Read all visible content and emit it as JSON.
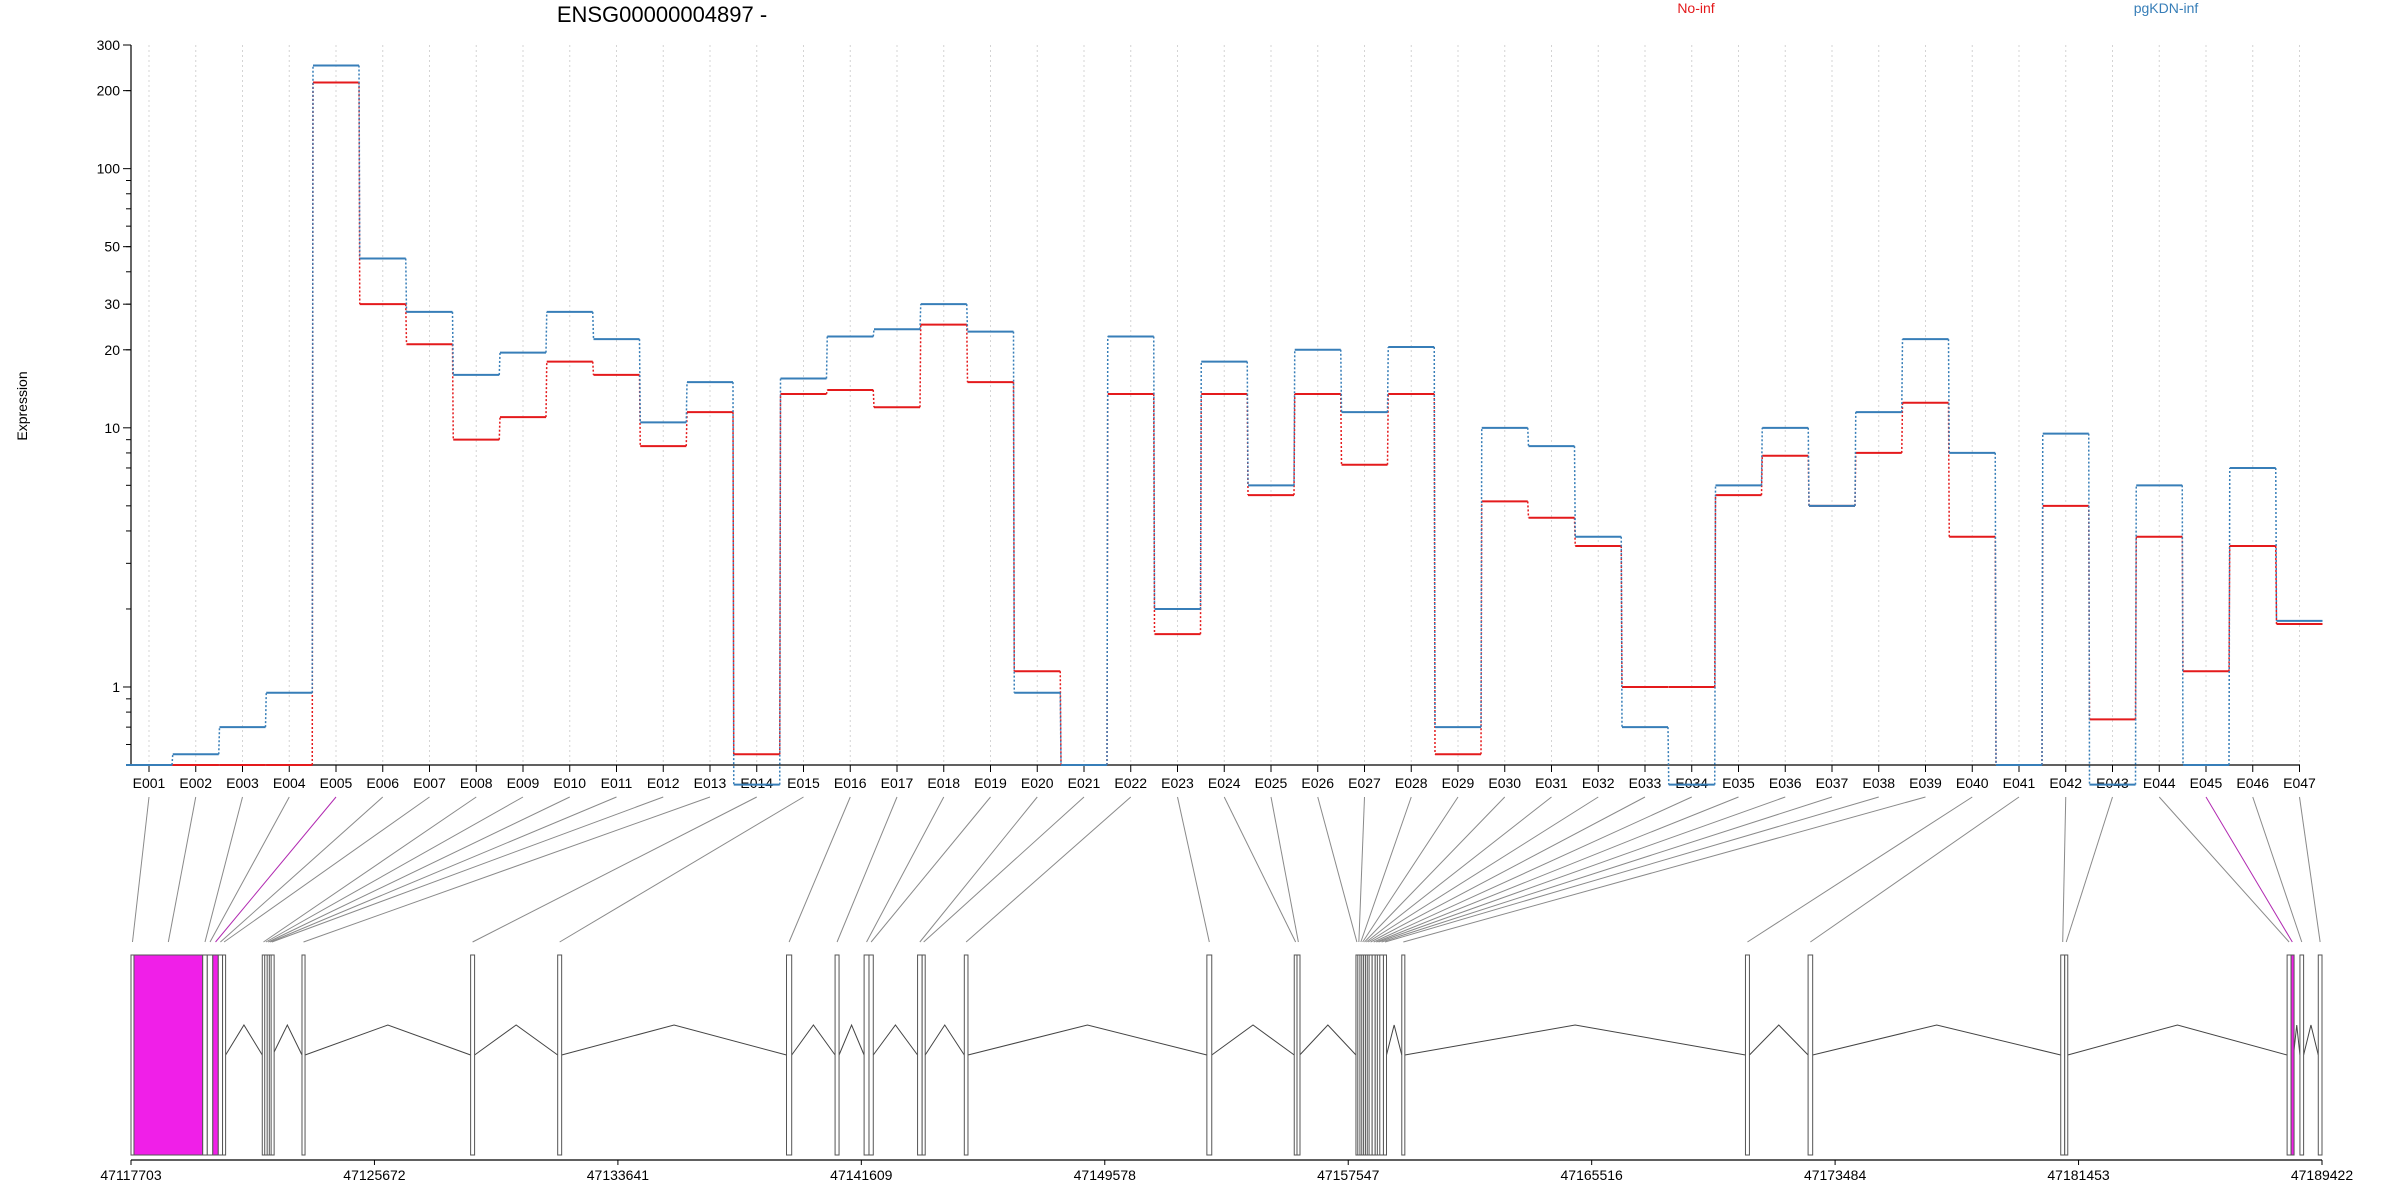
{
  "title": "ENSG00000004897 -",
  "legend": [
    {
      "name": "No-inf",
      "color": "#e41a1c"
    },
    {
      "name": "pgKDN-inf",
      "color": "#377eb8"
    }
  ],
  "chart_data": {
    "type": "line",
    "title": "ENSG00000004897 -",
    "ylabel": "Expression",
    "xlabel": "",
    "yscale": "log",
    "ylim": [
      0.5,
      300
    ],
    "yticks": [
      "1",
      "10",
      "20",
      "30",
      "50",
      "100",
      "200",
      "300"
    ],
    "grid": "vertical dotted",
    "legend_position": "top",
    "categories": [
      "E001",
      "E002",
      "E003",
      "E004",
      "E005",
      "E006",
      "E007",
      "E008",
      "E009",
      "E010",
      "E011",
      "E012",
      "E013",
      "E014",
      "E015",
      "E016",
      "E017",
      "E018",
      "E019",
      "E020",
      "E021",
      "E022",
      "E023",
      "E024",
      "E025",
      "E026",
      "E027",
      "E028",
      "E029",
      "E030",
      "E031",
      "E032",
      "E033",
      "E034",
      "E035",
      "E036",
      "E037",
      "E038",
      "E039",
      "E040",
      "E041",
      "E042",
      "E043",
      "E044",
      "E045",
      "E046",
      "E047"
    ],
    "series": [
      {
        "name": "No-inf",
        "color": "#e41a1c",
        "values": [
          0.5,
          0.5,
          0.5,
          0.5,
          215,
          30,
          21,
          9,
          11,
          18,
          16,
          8.5,
          11.5,
          0.55,
          13.5,
          14,
          12,
          25,
          15,
          1.15,
          0.5,
          13.5,
          1.6,
          13.5,
          5.5,
          13.5,
          7.2,
          13.5,
          0.55,
          5.2,
          4.5,
          3.5,
          1,
          1,
          5.5,
          7.8,
          5,
          8,
          12.5,
          3.8,
          0.5,
          5,
          0.75,
          3.8,
          1.15,
          3.5,
          1.75
        ]
      },
      {
        "name": "pgKDN-inf",
        "color": "#377eb8",
        "values": [
          0.5,
          0.55,
          0.7,
          0.95,
          250,
          45,
          28,
          16,
          19.5,
          28,
          22,
          10.5,
          15,
          0.42,
          15.5,
          22.5,
          24,
          30,
          23.5,
          0.95,
          0.5,
          22.5,
          2,
          18,
          6,
          20,
          11.5,
          20.5,
          0.7,
          10,
          8.5,
          3.8,
          0.7,
          0.42,
          6,
          10,
          5,
          11.5,
          22,
          8,
          0.5,
          9.5,
          0.42,
          6,
          0.5,
          7,
          1.8
        ]
      }
    ]
  },
  "gene_model": {
    "start": 47117703,
    "end": 47189422,
    "axis_ticks": [
      "47117703",
      "47125672",
      "47133641",
      "47141609",
      "47149578",
      "47157547",
      "47165516",
      "47173484",
      "47181453",
      "47189422"
    ],
    "exons": [
      {
        "id": "E001",
        "start": 47117703,
        "end": 47117800,
        "color": "#ffffff"
      },
      {
        "id": "E002",
        "start": 47117800,
        "end": 47120050,
        "color": "#f01fe8"
      },
      {
        "id": "E003",
        "start": 47120050,
        "end": 47120200,
        "color": "#ffffff"
      },
      {
        "id": "E004",
        "start": 47120200,
        "end": 47120380,
        "color": "#ffffff"
      },
      {
        "id": "E005",
        "start": 47120380,
        "end": 47120560,
        "color": "#f01fe8"
      },
      {
        "id": "E006",
        "start": 47120560,
        "end": 47120700,
        "color": "#ffffff"
      },
      {
        "id": "E007",
        "start": 47120700,
        "end": 47120800,
        "color": "#ffffff"
      },
      {
        "id": "E008",
        "start": 47122000,
        "end": 47122080,
        "color": "#ffffff"
      },
      {
        "id": "E009",
        "start": 47122080,
        "end": 47122160,
        "color": "#ffffff"
      },
      {
        "id": "E010",
        "start": 47122160,
        "end": 47122230,
        "color": "#ffffff"
      },
      {
        "id": "E011",
        "start": 47122230,
        "end": 47122290,
        "color": "#ffffff"
      },
      {
        "id": "E012",
        "start": 47122290,
        "end": 47122340,
        "color": "#ffffff"
      },
      {
        "id": "E013",
        "start": 47123300,
        "end": 47123400,
        "color": "#ffffff"
      },
      {
        "id": "E014",
        "start": 47128820,
        "end": 47128950,
        "color": "#ffffff"
      },
      {
        "id": "E015",
        "start": 47131670,
        "end": 47131800,
        "color": "#ffffff"
      },
      {
        "id": "E016",
        "start": 47139160,
        "end": 47139330,
        "color": "#ffffff"
      },
      {
        "id": "E017",
        "start": 47140750,
        "end": 47140880,
        "color": "#ffffff"
      },
      {
        "id": "E018",
        "start": 47141700,
        "end": 47141860,
        "color": "#ffffff"
      },
      {
        "id": "E019",
        "start": 47141860,
        "end": 47142000,
        "color": "#ffffff"
      },
      {
        "id": "E020",
        "start": 47143450,
        "end": 47143600,
        "color": "#ffffff"
      },
      {
        "id": "E021",
        "start": 47143600,
        "end": 47143700,
        "color": "#ffffff"
      },
      {
        "id": "E022",
        "start": 47144980,
        "end": 47145100,
        "color": "#ffffff"
      },
      {
        "id": "E023",
        "start": 47152920,
        "end": 47153080,
        "color": "#ffffff"
      },
      {
        "id": "E024",
        "start": 47155780,
        "end": 47155870,
        "color": "#ffffff"
      },
      {
        "id": "E025",
        "start": 47155870,
        "end": 47155960,
        "color": "#ffffff"
      },
      {
        "id": "E026",
        "start": 47157800,
        "end": 47157860,
        "color": "#ffffff"
      },
      {
        "id": "E027",
        "start": 47157860,
        "end": 47157930,
        "color": "#ffffff"
      },
      {
        "id": "E028",
        "start": 47157930,
        "end": 47157990,
        "color": "#ffffff"
      },
      {
        "id": "E029",
        "start": 47157990,
        "end": 47158050,
        "color": "#ffffff"
      },
      {
        "id": "E030",
        "start": 47158050,
        "end": 47158110,
        "color": "#ffffff"
      },
      {
        "id": "E031",
        "start": 47158110,
        "end": 47158170,
        "color": "#ffffff"
      },
      {
        "id": "E032",
        "start": 47158170,
        "end": 47158230,
        "color": "#ffffff"
      },
      {
        "id": "E033",
        "start": 47158230,
        "end": 47158330,
        "color": "#ffffff"
      },
      {
        "id": "E034",
        "start": 47158330,
        "end": 47158430,
        "color": "#ffffff"
      },
      {
        "id": "E035",
        "start": 47158430,
        "end": 47158500,
        "color": "#ffffff"
      },
      {
        "id": "E036",
        "start": 47158500,
        "end": 47158580,
        "color": "#ffffff"
      },
      {
        "id": "E037",
        "start": 47158580,
        "end": 47158700,
        "color": "#ffffff"
      },
      {
        "id": "E038",
        "start": 47158700,
        "end": 47158800,
        "color": "#ffffff"
      },
      {
        "id": "E039",
        "start": 47159300,
        "end": 47159400,
        "color": "#ffffff"
      },
      {
        "id": "E040",
        "start": 47170550,
        "end": 47170680,
        "color": "#ffffff"
      },
      {
        "id": "E041",
        "start": 47172600,
        "end": 47172750,
        "color": "#ffffff"
      },
      {
        "id": "E042",
        "start": 47180870,
        "end": 47181000,
        "color": "#ffffff"
      },
      {
        "id": "E043",
        "start": 47181000,
        "end": 47181100,
        "color": "#ffffff"
      },
      {
        "id": "E044",
        "start": 47188280,
        "end": 47188410,
        "color": "#ffffff"
      },
      {
        "id": "E045",
        "start": 47188410,
        "end": 47188490,
        "color": "#f01fe8"
      },
      {
        "id": "E046",
        "start": 47188700,
        "end": 47188820,
        "color": "#ffffff"
      },
      {
        "id": "E047",
        "start": 47189300,
        "end": 47189422,
        "color": "#ffffff"
      }
    ],
    "highlighted_exons": [
      "E005",
      "E045"
    ]
  }
}
